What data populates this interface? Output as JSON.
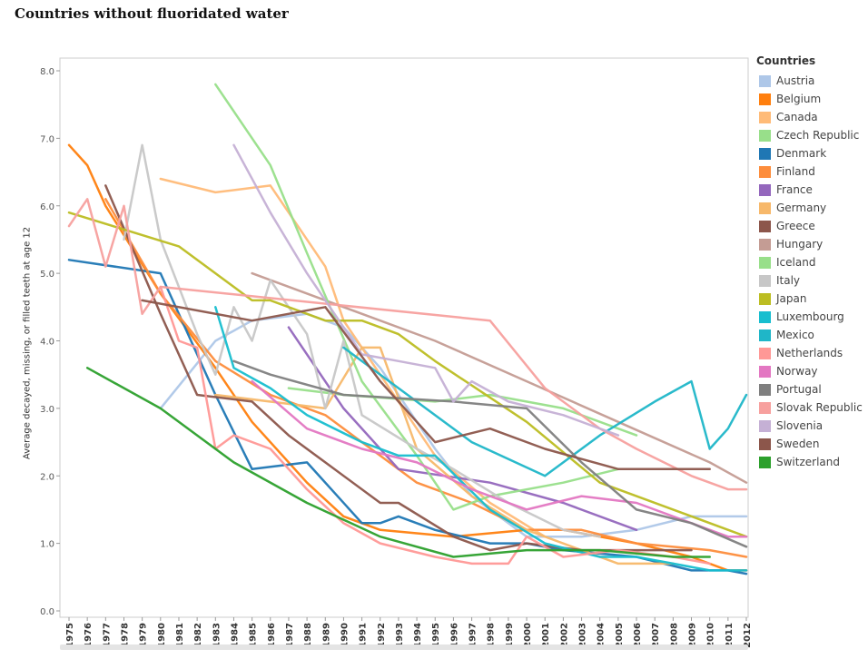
{
  "title": "Countries without fluoridated water",
  "legend": {
    "title": "Countries",
    "items": [
      {
        "label": "Austria",
        "color": "#aec7e8"
      },
      {
        "label": "Belgium",
        "color": "#ff7f0e"
      },
      {
        "label": "Canada",
        "color": "#ffbb78"
      },
      {
        "label": "Czech Republic",
        "color": "#98df8a"
      },
      {
        "label": "Denmark",
        "color": "#1f77b4"
      },
      {
        "label": "Finland",
        "color": "#fd8d3c"
      },
      {
        "label": "France",
        "color": "#9467bd"
      },
      {
        "label": "Germany",
        "color": "#f7b86a"
      },
      {
        "label": "Greece",
        "color": "#8c564b"
      },
      {
        "label": "Hungary",
        "color": "#c49c94"
      },
      {
        "label": "Iceland",
        "color": "#98df8a"
      },
      {
        "label": "Italy",
        "color": "#c7c7c7"
      },
      {
        "label": "Japan",
        "color": "#bcbd22"
      },
      {
        "label": "Luxembourg",
        "color": "#17becf"
      },
      {
        "label": "Mexico",
        "color": "#1fb6c8"
      },
      {
        "label": "Netherlands",
        "color": "#ff9896"
      },
      {
        "label": "Norway",
        "color": "#e377c2"
      },
      {
        "label": "Portugal",
        "color": "#7f7f7f"
      },
      {
        "label": "Slovak Republic",
        "color": "#f7a09e"
      },
      {
        "label": "Slovenia",
        "color": "#c5b0d5"
      },
      {
        "label": "Sweden",
        "color": "#8c564b"
      },
      {
        "label": "Switzerland",
        "color": "#2ca02c"
      }
    ]
  },
  "chart_data": {
    "type": "line",
    "title": "Countries without fluoridated water",
    "xlabel": "",
    "ylabel": "Average decayed, missing, or filled teeth at age 12",
    "ylim": [
      0,
      8
    ],
    "yticks": [
      "0.0",
      "1.0",
      "2.0",
      "3.0",
      "4.0",
      "5.0",
      "6.0",
      "7.0",
      "8.0"
    ],
    "x": [
      1975,
      1976,
      1977,
      1978,
      1979,
      1980,
      1981,
      1982,
      1983,
      1984,
      1985,
      1986,
      1987,
      1988,
      1989,
      1990,
      1991,
      1992,
      1993,
      1994,
      1995,
      1996,
      1997,
      1998,
      1999,
      2000,
      2001,
      2002,
      2003,
      2004,
      2005,
      2006,
      2007,
      2008,
      2009,
      2010,
      2011,
      2012
    ],
    "grid": false,
    "legend_position": "right",
    "series": [
      {
        "name": "Austria",
        "color": "#aec7e8",
        "points": [
          [
            1980,
            3.0
          ],
          [
            1983,
            4.0
          ],
          [
            1985,
            4.3
          ],
          [
            1988,
            4.4
          ],
          [
            1990,
            4.2
          ],
          [
            1992,
            3.6
          ],
          [
            1995,
            2.4
          ],
          [
            1997,
            1.7
          ],
          [
            2000,
            1.1
          ],
          [
            2003,
            1.1
          ],
          [
            2006,
            1.2
          ],
          [
            2009,
            1.4
          ],
          [
            2012,
            1.4
          ]
        ]
      },
      {
        "name": "Belgium",
        "color": "#ff7f0e",
        "points": [
          [
            1975,
            6.9
          ],
          [
            1976,
            6.6
          ],
          [
            1977,
            6.0
          ],
          [
            1980,
            4.7
          ],
          [
            1983,
            3.6
          ],
          [
            1985,
            2.8
          ],
          [
            1988,
            1.9
          ],
          [
            1990,
            1.4
          ],
          [
            1992,
            1.2
          ],
          [
            1996,
            1.1
          ],
          [
            2000,
            1.2
          ],
          [
            2002,
            1.2
          ],
          [
            2006,
            1.0
          ],
          [
            2009,
            0.8
          ],
          [
            2011,
            0.6
          ],
          [
            2012,
            0.6
          ]
        ]
      },
      {
        "name": "Canada",
        "color": "#ffbb78",
        "points": [
          [
            1980,
            6.4
          ],
          [
            1983,
            6.2
          ],
          [
            1986,
            6.3
          ],
          [
            1989,
            5.1
          ],
          [
            1990,
            4.3
          ],
          [
            1995,
            2.3
          ],
          [
            1998,
            1.6
          ],
          [
            2001,
            1.1
          ]
        ]
      },
      {
        "name": "Czech Republic",
        "color": "#98df8a",
        "points": [
          [
            1987,
            3.3
          ],
          [
            1990,
            3.2
          ],
          [
            1995,
            3.1
          ],
          [
            1998,
            3.2
          ],
          [
            2002,
            3.0
          ],
          [
            2006,
            2.6
          ]
        ]
      },
      {
        "name": "Denmark",
        "color": "#1f77b4",
        "points": [
          [
            1975,
            5.2
          ],
          [
            1980,
            5.0
          ],
          [
            1983,
            3.2
          ],
          [
            1985,
            2.1
          ],
          [
            1988,
            2.2
          ],
          [
            1991,
            1.3
          ],
          [
            1992,
            1.3
          ],
          [
            1993,
            1.4
          ],
          [
            1995,
            1.2
          ],
          [
            1998,
            1.0
          ],
          [
            2000,
            1.0
          ],
          [
            2002,
            0.9
          ],
          [
            2006,
            0.8
          ],
          [
            2009,
            0.6
          ],
          [
            2011,
            0.6
          ],
          [
            2012,
            0.55
          ]
        ]
      },
      {
        "name": "Finland",
        "color": "#fd8d3c",
        "points": [
          [
            1977,
            6.1
          ],
          [
            1980,
            4.7
          ],
          [
            1983,
            3.7
          ],
          [
            1986,
            3.2
          ],
          [
            1989,
            2.9
          ],
          [
            1991,
            2.5
          ],
          [
            1994,
            1.9
          ],
          [
            1997,
            1.6
          ],
          [
            2000,
            1.2
          ],
          [
            2003,
            1.2
          ],
          [
            2006,
            1.0
          ],
          [
            2010,
            0.9
          ],
          [
            2012,
            0.8
          ]
        ]
      },
      {
        "name": "France",
        "color": "#9467bd",
        "points": [
          [
            1987,
            4.2
          ],
          [
            1990,
            3.0
          ],
          [
            1993,
            2.1
          ],
          [
            1998,
            1.9
          ],
          [
            2002,
            1.6
          ],
          [
            2006,
            1.2
          ]
        ]
      },
      {
        "name": "Germany",
        "color": "#f7b86a",
        "points": [
          [
            1983,
            3.2
          ],
          [
            1989,
            3.0
          ],
          [
            1991,
            3.9
          ],
          [
            1992,
            3.9
          ],
          [
            1994,
            2.4
          ],
          [
            1997,
            1.7
          ],
          [
            2000,
            1.2
          ],
          [
            2003,
            0.9
          ],
          [
            2005,
            0.7
          ],
          [
            2008,
            0.7
          ]
        ]
      },
      {
        "name": "Greece",
        "color": "#8c564b",
        "points": [
          [
            1977,
            6.3
          ],
          [
            1980,
            4.4
          ],
          [
            1982,
            3.2
          ],
          [
            1985,
            3.1
          ],
          [
            1987,
            2.6
          ],
          [
            1989,
            2.2
          ],
          [
            1992,
            1.6
          ],
          [
            1993,
            1.6
          ],
          [
            1996,
            1.1
          ],
          [
            1998,
            0.9
          ],
          [
            2000,
            1.0
          ],
          [
            2003,
            0.9
          ],
          [
            2006,
            0.9
          ],
          [
            2009,
            0.9
          ]
        ]
      },
      {
        "name": "Hungary",
        "color": "#c49c94",
        "points": [
          [
            1985,
            5.0
          ],
          [
            1990,
            4.5
          ],
          [
            1995,
            4.0
          ],
          [
            2000,
            3.4
          ],
          [
            2005,
            2.8
          ],
          [
            2010,
            2.2
          ],
          [
            2012,
            1.9
          ]
        ]
      },
      {
        "name": "Iceland",
        "color": "#98df8a",
        "points": [
          [
            1983,
            7.8
          ],
          [
            1986,
            6.6
          ],
          [
            1988,
            5.3
          ],
          [
            1991,
            3.4
          ],
          [
            1994,
            2.3
          ],
          [
            1996,
            1.5
          ],
          [
            1998,
            1.7
          ],
          [
            2002,
            1.9
          ],
          [
            2005,
            2.1
          ]
        ]
      },
      {
        "name": "Italy",
        "color": "#c7c7c7",
        "points": [
          [
            1978,
            5.5
          ],
          [
            1979,
            6.9
          ],
          [
            1980,
            5.5
          ],
          [
            1982,
            4.1
          ],
          [
            1983,
            3.5
          ],
          [
            1984,
            4.5
          ],
          [
            1985,
            4.0
          ],
          [
            1986,
            4.9
          ],
          [
            1988,
            4.1
          ],
          [
            1989,
            3.0
          ],
          [
            1990,
            4.0
          ],
          [
            1991,
            2.9
          ],
          [
            1994,
            2.4
          ],
          [
            1996,
            2.1
          ],
          [
            1999,
            1.6
          ],
          [
            2002,
            1.2
          ],
          [
            2004,
            1.1
          ]
        ]
      },
      {
        "name": "Japan",
        "color": "#bcbd22",
        "points": [
          [
            1975,
            5.9
          ],
          [
            1981,
            5.4
          ],
          [
            1985,
            4.6
          ],
          [
            1986,
            4.6
          ],
          [
            1989,
            4.3
          ],
          [
            1991,
            4.3
          ],
          [
            1993,
            4.1
          ],
          [
            1995,
            3.7
          ],
          [
            2000,
            2.8
          ],
          [
            2004,
            1.9
          ],
          [
            2008,
            1.5
          ],
          [
            2012,
            1.1
          ]
        ]
      },
      {
        "name": "Luxembourg",
        "color": "#17becf",
        "points": [
          [
            1983,
            4.5
          ],
          [
            1984,
            3.6
          ],
          [
            1986,
            3.3
          ],
          [
            1988,
            2.9
          ],
          [
            1991,
            2.5
          ],
          [
            1993,
            2.3
          ],
          [
            1995,
            2.3
          ],
          [
            1998,
            1.5
          ],
          [
            2001,
            1.0
          ],
          [
            2004,
            0.8
          ],
          [
            2006,
            0.8
          ],
          [
            2008,
            0.7
          ],
          [
            2010,
            0.6
          ],
          [
            2012,
            0.6
          ]
        ]
      },
      {
        "name": "Mexico",
        "color": "#1fb6c8",
        "points": [
          [
            1990,
            3.9
          ],
          [
            1993,
            3.3
          ],
          [
            1997,
            2.5
          ],
          [
            2001,
            2.0
          ],
          [
            2004,
            2.6
          ],
          [
            2007,
            3.1
          ],
          [
            2009,
            3.4
          ],
          [
            2010,
            2.4
          ],
          [
            2011,
            2.7
          ],
          [
            2012,
            3.2
          ]
        ]
      },
      {
        "name": "Netherlands",
        "color": "#ff9896",
        "points": [
          [
            1980,
            4.8
          ],
          [
            1981,
            4.0
          ],
          [
            1982,
            3.9
          ],
          [
            1983,
            2.4
          ],
          [
            1984,
            2.6
          ],
          [
            1986,
            2.4
          ],
          [
            1988,
            1.8
          ],
          [
            1990,
            1.3
          ],
          [
            1992,
            1.0
          ],
          [
            1995,
            0.8
          ],
          [
            1997,
            0.7
          ],
          [
            1999,
            0.7
          ],
          [
            2000,
            1.1
          ],
          [
            2002,
            0.8
          ],
          [
            2005,
            0.9
          ],
          [
            2008,
            0.8
          ],
          [
            2010,
            0.7
          ]
        ]
      },
      {
        "name": "Norway",
        "color": "#e377c2",
        "points": [
          [
            1985,
            3.4
          ],
          [
            1988,
            2.7
          ],
          [
            1991,
            2.4
          ],
          [
            1994,
            2.2
          ],
          [
            1997,
            1.8
          ],
          [
            2000,
            1.5
          ],
          [
            2003,
            1.7
          ],
          [
            2006,
            1.6
          ],
          [
            2009,
            1.3
          ],
          [
            2011,
            1.1
          ],
          [
            2012,
            1.1
          ]
        ]
      },
      {
        "name": "Portugal",
        "color": "#7f7f7f",
        "points": [
          [
            1984,
            3.7
          ],
          [
            1986,
            3.5
          ],
          [
            1990,
            3.2
          ],
          [
            1996,
            3.1
          ],
          [
            2000,
            3.0
          ],
          [
            2003,
            2.2
          ],
          [
            2006,
            1.5
          ],
          [
            2009,
            1.3
          ],
          [
            2012,
            0.95
          ]
        ]
      },
      {
        "name": "Slovak Republic",
        "color": "#f7a09e",
        "points": [
          [
            1975,
            5.7
          ],
          [
            1976,
            6.1
          ],
          [
            1977,
            5.1
          ],
          [
            1978,
            6.0
          ],
          [
            1979,
            4.4
          ],
          [
            1980,
            4.8
          ],
          [
            1998,
            4.3
          ],
          [
            2001,
            3.3
          ],
          [
            2004,
            2.7
          ],
          [
            2006,
            2.4
          ],
          [
            2009,
            2.0
          ],
          [
            2011,
            1.8
          ],
          [
            2012,
            1.8
          ]
        ]
      },
      {
        "name": "Slovenia",
        "color": "#c5b0d5",
        "points": [
          [
            1984,
            6.9
          ],
          [
            1986,
            5.9
          ],
          [
            1988,
            5.0
          ],
          [
            1991,
            3.8
          ],
          [
            1993,
            3.7
          ],
          [
            1995,
            3.6
          ],
          [
            1996,
            3.1
          ],
          [
            1997,
            3.4
          ],
          [
            1999,
            3.1
          ],
          [
            2002,
            2.9
          ],
          [
            2005,
            2.6
          ]
        ]
      },
      {
        "name": "Sweden",
        "color": "#8c564b",
        "points": [
          [
            1979,
            4.6
          ],
          [
            1985,
            4.3
          ],
          [
            1989,
            4.5
          ],
          [
            1992,
            3.4
          ],
          [
            1995,
            2.5
          ],
          [
            1998,
            2.7
          ],
          [
            2001,
            2.4
          ],
          [
            2005,
            2.1
          ],
          [
            2008,
            2.1
          ],
          [
            2010,
            2.1
          ]
        ]
      },
      {
        "name": "Switzerland",
        "color": "#2ca02c",
        "points": [
          [
            1976,
            3.6
          ],
          [
            1980,
            3.0
          ],
          [
            1984,
            2.2
          ],
          [
            1988,
            1.6
          ],
          [
            1992,
            1.1
          ],
          [
            1996,
            0.8
          ],
          [
            2000,
            0.9
          ],
          [
            2004,
            0.9
          ],
          [
            2008,
            0.8
          ],
          [
            2010,
            0.8
          ]
        ]
      }
    ]
  }
}
